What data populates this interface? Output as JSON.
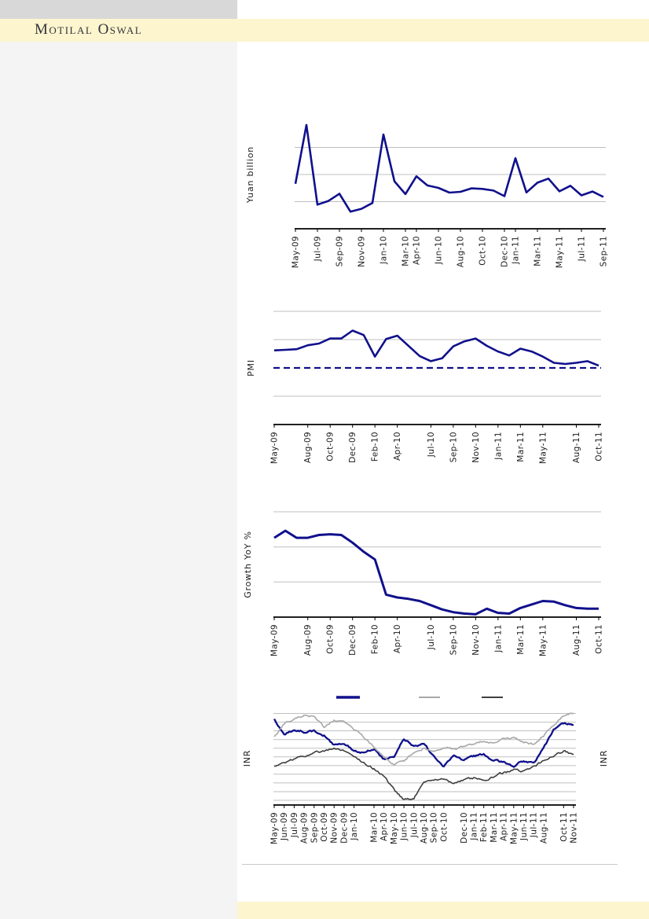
{
  "header": {
    "logo_text": "Motilal Oswal"
  },
  "colors": {
    "header_band": "#FCF5CE",
    "header_box": "#D8D8D8",
    "left_panel": "#F4F4F4",
    "footer_band": "#FCF5CE",
    "line_navy": "#10108C",
    "line_gray": "#A8A8A8",
    "line_dark": "#3F3F3F",
    "gridline": "#BFBFBF",
    "axis": "#000000"
  },
  "chart_data": [
    {
      "id": "yuan-loans",
      "type": "line",
      "title": "",
      "ylabel": "Yuan billion",
      "granularity": "monthly",
      "months": [
        "May-09",
        "Jun-09",
        "Jul-09",
        "Aug-09",
        "Sep-09",
        "Oct-09",
        "Nov-09",
        "Dec-09",
        "Jan-10",
        "Feb-10",
        "Mar-10",
        "Apr-10",
        "May-10",
        "Jun-10",
        "Jul-10",
        "Aug-10",
        "Sep-10",
        "Oct-10",
        "Nov-10",
        "Dec-10",
        "Jan-11",
        "Feb-11",
        "Mar-11",
        "Apr-11",
        "May-11",
        "Jun-11",
        "Jul-11",
        "Aug-11",
        "Sep-11"
      ],
      "values": [
        664,
        1530,
        356,
        410,
        517,
        253,
        295,
        380,
        1390,
        700,
        511,
        774,
        639,
        603,
        533,
        545,
        596,
        588,
        564,
        481,
        1040,
        536,
        679,
        740,
        552,
        634,
        493,
        549,
        470
      ],
      "x_tick_labels": [
        "May-09",
        "Jul-09",
        "Sep-09",
        "Nov-09",
        "Jan-10",
        "Mar-10",
        "Apr-10",
        "Jun-10",
        "Aug-10",
        "Oct-10",
        "Dec-10",
        "Jan-11",
        "Mar-11",
        "May-11",
        "Jul-11",
        "Sep-11"
      ],
      "x_tick_indices": [
        0,
        2,
        4,
        6,
        8,
        10,
        11,
        13,
        15,
        17,
        19,
        20,
        22,
        24,
        26,
        28
      ],
      "ylim": [
        0,
        1600
      ],
      "gridline_values": [
        400,
        800,
        1200
      ],
      "y_axis_values_not_visible": true,
      "values_estimated": true
    },
    {
      "id": "pmi",
      "type": "line",
      "title": "",
      "ylabel": "PMI",
      "granularity": "monthly",
      "months": [
        "May-09",
        "Jun-09",
        "Jul-09",
        "Aug-09",
        "Sep-09",
        "Oct-09",
        "Nov-09",
        "Dec-09",
        "Jan-10",
        "Feb-10",
        "Mar-10",
        "Apr-10",
        "May-10",
        "Jun-10",
        "Jul-10",
        "Aug-10",
        "Sep-10",
        "Oct-10",
        "Nov-10",
        "Dec-10",
        "Jan-11",
        "Feb-11",
        "Mar-11",
        "Apr-11",
        "May-11",
        "Jun-11",
        "Jul-11",
        "Aug-11",
        "Sep-11",
        "Oct-11"
      ],
      "values": [
        53.1,
        53.2,
        53.3,
        54.0,
        54.3,
        55.2,
        55.2,
        56.6,
        55.8,
        52.0,
        55.1,
        55.7,
        53.9,
        52.1,
        51.2,
        51.7,
        53.8,
        54.7,
        55.2,
        53.9,
        52.9,
        52.2,
        53.4,
        52.9,
        52.0,
        50.9,
        50.7,
        50.9,
        51.2,
        50.4
      ],
      "x_tick_labels": [
        "May-09",
        "Aug-09",
        "Oct-09",
        "Dec-09",
        "Feb-10",
        "Apr-10",
        "Jul-10",
        "Sep-10",
        "Nov-10",
        "Jan-11",
        "Mar-11",
        "May-11",
        "Aug-11",
        "Oct-11"
      ],
      "x_tick_indices": [
        0,
        3,
        5,
        7,
        9,
        11,
        14,
        16,
        18,
        20,
        22,
        24,
        27,
        29
      ],
      "ylim": [
        40,
        60
      ],
      "gridline_values": [
        45,
        55,
        60
      ],
      "dashed_line_value": 50,
      "y_axis_values_not_visible": true,
      "values_estimated": true
    },
    {
      "id": "growth-yoy",
      "type": "line",
      "title": "",
      "ylabel": "Growth YoY %",
      "granularity": "monthly",
      "months": [
        "May-09",
        "Jun-09",
        "Jul-09",
        "Aug-09",
        "Sep-09",
        "Oct-09",
        "Nov-09",
        "Dec-09",
        "Jan-10",
        "Feb-10",
        "Mar-10",
        "Apr-10",
        "May-10",
        "Jun-10",
        "Jul-10",
        "Aug-10",
        "Sep-10",
        "Oct-10",
        "Nov-10",
        "Dec-10",
        "Jan-11",
        "Feb-11",
        "Mar-11",
        "Apr-11",
        "May-11",
        "Jun-11",
        "Jul-11",
        "Aug-11",
        "Sep-11",
        "Oct-11"
      ],
      "values": [
        26.3,
        27.3,
        26.3,
        26.3,
        26.7,
        26.8,
        26.7,
        25.6,
        24.3,
        23.2,
        18.2,
        17.8,
        17.6,
        17.3,
        16.7,
        16.1,
        15.7,
        15.5,
        15.4,
        16.2,
        15.6,
        15.5,
        16.3,
        16.8,
        17.3,
        17.2,
        16.7,
        16.3,
        16.2,
        16.2
      ],
      "x_tick_labels": [
        "May-09",
        "Aug-09",
        "Oct-09",
        "Dec-09",
        "Feb-10",
        "Apr-10",
        "Jul-10",
        "Sep-10",
        "Nov-10",
        "Jan-11",
        "Mar-11",
        "May-11",
        "Aug-11",
        "Oct-11"
      ],
      "x_tick_indices": [
        0,
        3,
        5,
        7,
        9,
        11,
        14,
        16,
        18,
        20,
        22,
        24,
        27,
        29
      ],
      "ylim": [
        15,
        30
      ],
      "gridline_values": [
        20,
        25,
        30
      ],
      "y_axis_values_not_visible": true,
      "values_estimated": true
    },
    {
      "id": "inr",
      "type": "line",
      "title": "",
      "ylabel_left": "INR",
      "ylabel_right": "INR",
      "granularity": "daily",
      "months": [
        "May-09",
        "Jun-09",
        "Jul-09",
        "Aug-09",
        "Sep-09",
        "Oct-09",
        "Nov-09",
        "Dec-09",
        "Jan-10",
        "Feb-10",
        "Mar-10",
        "Apr-10",
        "May-10",
        "Jun-10",
        "Jul-10",
        "Aug-10",
        "Sep-10",
        "Oct-10",
        "Nov-10",
        "Dec-10",
        "Jan-11",
        "Feb-11",
        "Mar-11",
        "Apr-11",
        "May-11",
        "Jun-11",
        "Jul-11",
        "Aug-11",
        "Sep-11",
        "Oct-11",
        "Nov-11"
      ],
      "series": [
        {
          "name": "navy-line",
          "color_key": "line_navy",
          "width": 2.3,
          "noise_amp": 1.9,
          "values_pct_of_plot_height": [
            91.6,
            75.7,
            79.9,
            78.2,
            79.0,
            74.0,
            64.0,
            66.5,
            58.1,
            55.6,
            60.6,
            48.9,
            52.2,
            70.7,
            62.3,
            65.6,
            52.2,
            41.3,
            53.9,
            48.0,
            52.2,
            53.9,
            48.0,
            45.5,
            42.2,
            47.2,
            44.7,
            60.6,
            80.7,
            87.4,
            85.7
          ]
        },
        {
          "name": "gray-line",
          "color_key": "line_gray",
          "width": 1.6,
          "noise_amp": 1.9,
          "values_pct_of_plot_height": [
            72.3,
            87.4,
            92.5,
            95.8,
            94.1,
            83.2,
            90.8,
            89.1,
            80.7,
            72.3,
            62.3,
            52.2,
            43.8,
            47.2,
            56.4,
            60.6,
            56.4,
            62.3,
            59.8,
            62.3,
            65.6,
            68.1,
            65.6,
            70.7,
            72.3,
            67.3,
            64.8,
            74.0,
            85.7,
            95.8,
            98.3
          ]
        },
        {
          "name": "dark-line",
          "color_key": "line_dark",
          "width": 1.6,
          "noise_amp": 2.1,
          "values_pct_of_plot_height": [
            41.3,
            45.5,
            49.7,
            52.2,
            55.6,
            58.1,
            59.8,
            58.1,
            52.2,
            45.5,
            38.8,
            30.4,
            16.2,
            5.3,
            7.8,
            22.9,
            27.1,
            28.8,
            22.0,
            26.2,
            28.8,
            26.2,
            30.4,
            34.6,
            38.0,
            35.5,
            40.5,
            47.2,
            52.2,
            58.1,
            53.9
          ]
        }
      ],
      "legend": {
        "position": "top",
        "labels_visible": false,
        "entries": [
          {
            "swatch_color_key": "line_navy"
          },
          {
            "swatch_color_key": "line_gray"
          },
          {
            "swatch_color_key": "line_dark"
          }
        ]
      },
      "x_tick_labels": [
        "May-09",
        "Jun-09",
        "Jul-09",
        "Aug-09",
        "Sep-09",
        "Oct-09",
        "Nov-09",
        "Dec-09",
        "Jan-10",
        "Mar-10",
        "Apr-10",
        "May-10",
        "Jun-10",
        "Jul-10",
        "Aug-10",
        "Sep-10",
        "Oct-10",
        "Dec-10",
        "Jan-11",
        "Feb-11",
        "Mar-11",
        "Apr-11",
        "May-11",
        "Jun-11",
        "Jul-11",
        "Aug-11",
        "Oct-11",
        "Nov-11"
      ],
      "x_tick_indices": [
        0,
        1,
        2,
        3,
        4,
        5,
        6,
        7,
        8,
        10,
        11,
        12,
        13,
        14,
        15,
        16,
        17,
        19,
        20,
        21,
        22,
        23,
        24,
        25,
        26,
        27,
        29,
        30
      ],
      "ylim_pct": [
        0,
        100
      ],
      "gridline_pcts": [
        5.0,
        14.3,
        23.6,
        32.9,
        42.1,
        51.4,
        60.7,
        70.0,
        79.3,
        88.6,
        97.9
      ],
      "y_axis_values_not_visible": true,
      "values_estimated": true
    }
  ]
}
